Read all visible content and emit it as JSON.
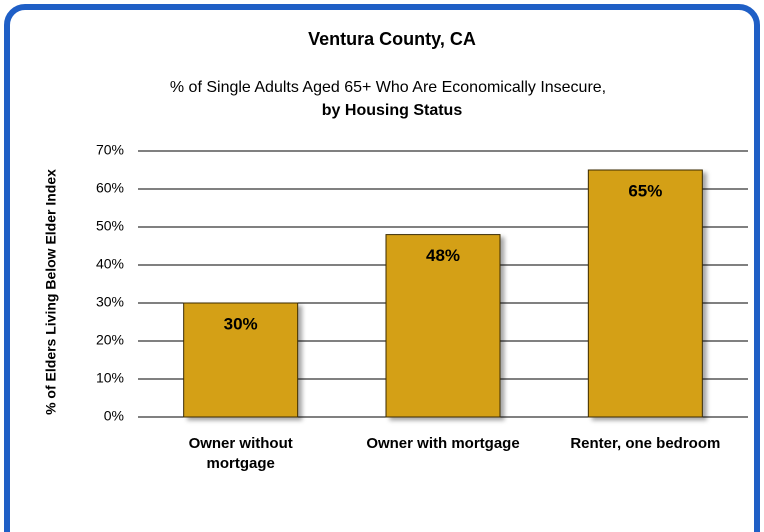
{
  "chart_data": {
    "type": "bar",
    "title": "Ventura County, CA",
    "subtitle": [
      "% of Single Adults Aged 65+ Who Are Economically Insecure,",
      "by Housing Status"
    ],
    "y_label": "% of Elders Living Below Elder Index",
    "categories": [
      "Owner without mortgage",
      "Owner with mortgage",
      "Renter, one bedroom"
    ],
    "values": [
      30,
      48,
      65
    ],
    "value_labels": [
      "30%",
      "48%",
      "65%"
    ],
    "color": "#d4a017",
    "ylim": [
      0,
      70
    ],
    "yticks": [
      {
        "value": 0,
        "label": "0%"
      },
      {
        "value": 10,
        "label": "10%"
      },
      {
        "value": 20,
        "label": "20%"
      },
      {
        "value": 30,
        "label": "30%"
      },
      {
        "value": 40,
        "label": "40%"
      },
      {
        "value": 50,
        "label": "50%"
      },
      {
        "value": 60,
        "label": "60%"
      },
      {
        "value": 70,
        "label": "70%"
      }
    ],
    "grid": true
  }
}
